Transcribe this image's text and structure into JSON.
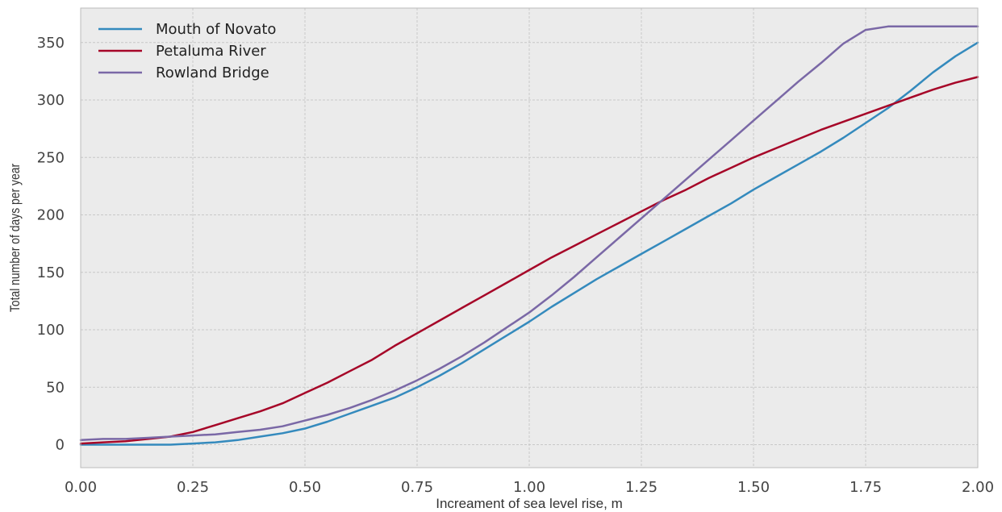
{
  "chart_data": {
    "type": "line",
    "title": "",
    "xlabel": "Increament of sea level rise, m",
    "ylabel": "Total number of days per year",
    "xlim": [
      0,
      2
    ],
    "ylim": [
      -20,
      380
    ],
    "xticks": [
      "0.00",
      "0.25",
      "0.50",
      "0.75",
      "1.00",
      "1.25",
      "1.50",
      "1.75",
      "2.00"
    ],
    "yticks": [
      "0",
      "50",
      "100",
      "150",
      "200",
      "250",
      "300",
      "350"
    ],
    "grid": true,
    "legend_position": "top-left",
    "series": [
      {
        "name": "Mouth of Novato",
        "color": "#348ABD",
        "x": [
          0,
          0.05,
          0.1,
          0.15,
          0.2,
          0.25,
          0.3,
          0.35,
          0.4,
          0.45,
          0.5,
          0.55,
          0.6,
          0.65,
          0.7,
          0.75,
          0.8,
          0.85,
          0.9,
          0.95,
          1.0,
          1.05,
          1.1,
          1.15,
          1.2,
          1.25,
          1.3,
          1.35,
          1.4,
          1.45,
          1.5,
          1.55,
          1.6,
          1.65,
          1.7,
          1.75,
          1.8,
          1.85,
          1.9,
          1.95,
          2.0
        ],
        "y": [
          0,
          0,
          0,
          0,
          0,
          1,
          2,
          4,
          7,
          10,
          14,
          20,
          27,
          34,
          41,
          50,
          60,
          71,
          83,
          95,
          107,
          120,
          132,
          144,
          155,
          166,
          177,
          188,
          199,
          210,
          222,
          233,
          244,
          255,
          267,
          280,
          293,
          308,
          324,
          338,
          350
        ]
      },
      {
        "name": "Petaluma River",
        "color": "#A60628",
        "x": [
          0,
          0.05,
          0.1,
          0.15,
          0.2,
          0.25,
          0.3,
          0.35,
          0.4,
          0.45,
          0.5,
          0.55,
          0.6,
          0.65,
          0.7,
          0.75,
          0.8,
          0.85,
          0.9,
          0.95,
          1.0,
          1.05,
          1.1,
          1.15,
          1.2,
          1.25,
          1.3,
          1.35,
          1.4,
          1.45,
          1.5,
          1.55,
          1.6,
          1.65,
          1.7,
          1.75,
          1.8,
          1.85,
          1.9,
          1.95,
          2.0
        ],
        "y": [
          1,
          2,
          3,
          5,
          7,
          11,
          17,
          23,
          29,
          36,
          45,
          54,
          64,
          74,
          86,
          97,
          108,
          119,
          130,
          141,
          152,
          163,
          173,
          183,
          193,
          203,
          213,
          222,
          232,
          241,
          250,
          258,
          266,
          274,
          281,
          288,
          295,
          302,
          309,
          315,
          320
        ]
      },
      {
        "name": "Rowland Bridge",
        "color": "#7A68A6",
        "x": [
          0,
          0.05,
          0.1,
          0.15,
          0.2,
          0.25,
          0.3,
          0.35,
          0.4,
          0.45,
          0.5,
          0.55,
          0.6,
          0.65,
          0.7,
          0.75,
          0.8,
          0.85,
          0.9,
          0.95,
          1.0,
          1.05,
          1.1,
          1.15,
          1.2,
          1.25,
          1.3,
          1.35,
          1.4,
          1.45,
          1.5,
          1.55,
          1.6,
          1.65,
          1.7,
          1.75,
          1.8,
          1.85,
          1.9,
          1.95,
          2.0
        ],
        "y": [
          4,
          5,
          5,
          6,
          7,
          8,
          9,
          11,
          13,
          16,
          21,
          26,
          32,
          39,
          47,
          56,
          66,
          77,
          89,
          102,
          115,
          130,
          146,
          163,
          180,
          197,
          214,
          231,
          248,
          265,
          282,
          299,
          316,
          332,
          349,
          361,
          364,
          364,
          364,
          364,
          364
        ]
      }
    ]
  }
}
